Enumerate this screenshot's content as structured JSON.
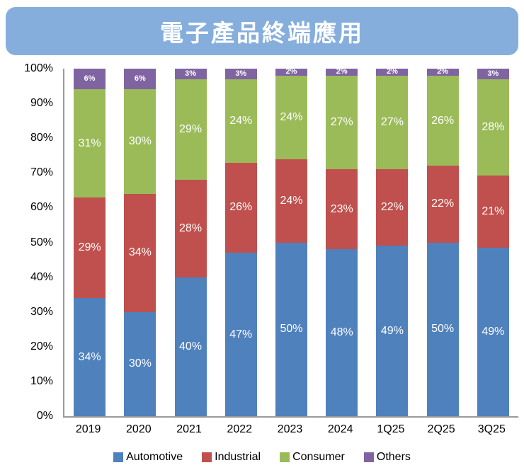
{
  "title": "電子產品終端應用",
  "banner_color": "#85AEDC",
  "axis_color": "#9a9a9a",
  "chart_data": {
    "type": "bar",
    "stacked": true,
    "title": "電子產品終端應用",
    "categories": [
      "2019",
      "2020",
      "2021",
      "2022",
      "2023",
      "2024",
      "1Q25",
      "2Q25",
      "3Q25"
    ],
    "series": [
      {
        "name": "Automotive",
        "color": "#4F81BD",
        "values": [
          34,
          30,
          40,
          47,
          50,
          48,
          49,
          50,
          49
        ]
      },
      {
        "name": "Industrial",
        "color": "#C0504D",
        "values": [
          29,
          34,
          28,
          26,
          24,
          23,
          22,
          22,
          21
        ]
      },
      {
        "name": "Consumer",
        "color": "#9BBB59",
        "values": [
          31,
          30,
          29,
          24,
          24,
          27,
          27,
          26,
          28
        ]
      },
      {
        "name": "Others",
        "color": "#8064A2",
        "values": [
          6,
          6,
          3,
          3,
          2,
          2,
          2,
          2,
          3
        ]
      }
    ],
    "value_suffix": "%",
    "y_ticks": [
      "100%",
      "90%",
      "80%",
      "70%",
      "60%",
      "50%",
      "40%",
      "30%",
      "20%",
      "10%",
      "0%"
    ],
    "ylim": [
      0,
      100
    ],
    "xlabel": "",
    "ylabel": "",
    "grid": false,
    "legend_position": "bottom"
  }
}
